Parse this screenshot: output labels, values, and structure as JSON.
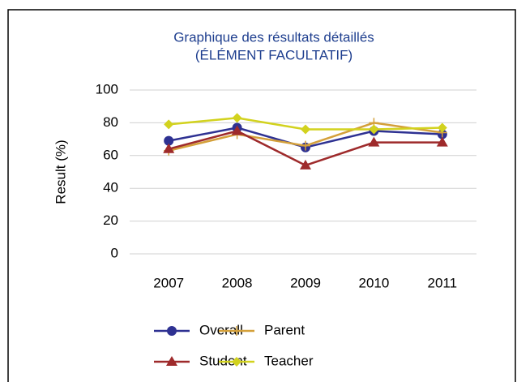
{
  "chart_data": {
    "type": "line",
    "title": "Graphique des résultats détaillés",
    "subtitle": "(ÉLÉMENT FACULTATIF)",
    "y_label": "Result (%)",
    "categories": [
      "2007",
      "2008",
      "2009",
      "2010",
      "2011"
    ],
    "series": [
      {
        "name": "Overall",
        "color": "#2e3192",
        "marker": "circle",
        "values": [
          69,
          77,
          65,
          75,
          73
        ]
      },
      {
        "name": "Parent",
        "color": "#d4a03a",
        "marker": "plus",
        "values": [
          63,
          73,
          66,
          80,
          74
        ]
      },
      {
        "name": "Student",
        "color": "#9e2a2b",
        "marker": "triangle",
        "values": [
          64,
          75,
          54,
          68,
          68
        ]
      },
      {
        "name": "Teacher",
        "color": "#d2d21e",
        "marker": "diamond",
        "values": [
          79,
          83,
          76,
          76,
          77
        ]
      }
    ],
    "ylim": [
      0,
      100
    ],
    "yticks": [
      0,
      20,
      40,
      60,
      80,
      100
    ],
    "grid": true,
    "legend": "bottom"
  }
}
